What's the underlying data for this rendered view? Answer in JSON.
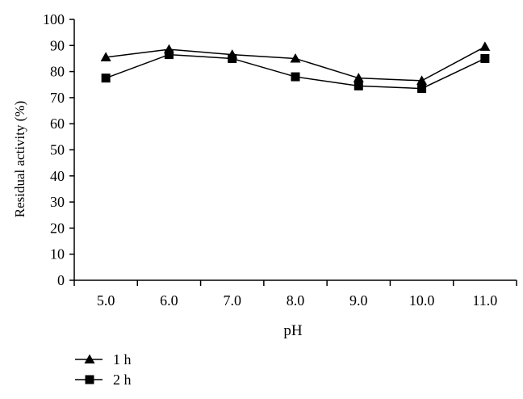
{
  "chart_data": {
    "type": "line",
    "title": "",
    "xlabel": "pH",
    "ylabel": "Residual activity (%)",
    "categories": [
      "5.0",
      "6.0",
      "7.0",
      "8.0",
      "9.0",
      "10.0",
      "11.0"
    ],
    "ylim": [
      0,
      100
    ],
    "yticks": [
      0,
      10,
      20,
      30,
      40,
      50,
      60,
      70,
      80,
      90,
      100
    ],
    "grid": false,
    "legend_position": "bottom-left",
    "series": [
      {
        "name": "1 h",
        "marker": "triangle",
        "color": "#000000",
        "values": [
          85.5,
          88.5,
          86.5,
          85,
          77.5,
          76.5,
          89.5
        ]
      },
      {
        "name": "2 h",
        "marker": "square",
        "color": "#000000",
        "values": [
          77.5,
          86.5,
          85,
          78,
          74.5,
          73.5,
          85
        ]
      }
    ]
  }
}
